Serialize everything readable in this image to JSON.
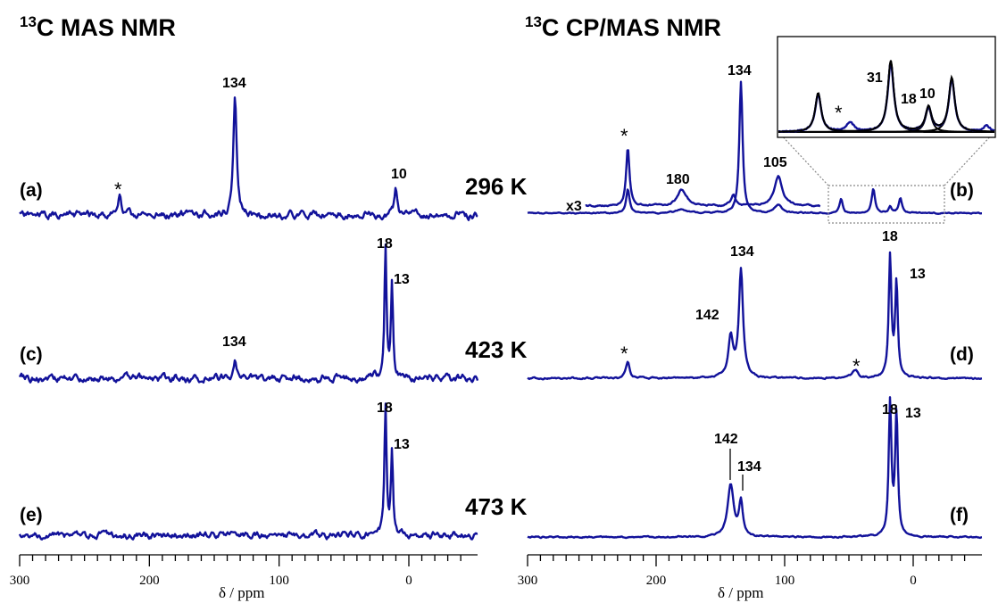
{
  "headers": {
    "left_sup": "13",
    "left_text": "C MAS NMR",
    "right_sup": "13",
    "right_text": "C CP/MAS NMR"
  },
  "temperatures": [
    "296 K",
    "423 K",
    "473 K"
  ],
  "xlabel": "δ / ppm",
  "scale_label": "x3",
  "colors": {
    "spectrum": "#12129a",
    "fit": "#000000",
    "text": "#000000"
  },
  "chart_data": [
    {
      "type": "line",
      "panel": "(a)",
      "experiment": "MAS",
      "temperature": "296 K",
      "xlim": [
        300,
        -48
      ],
      "x_reversed": true,
      "ticks": [
        300,
        200,
        100,
        0
      ],
      "xlabel": "δ / ppm",
      "peaks": [
        {
          "ppm": 134,
          "height": 0.96,
          "width": 2.2,
          "label": "134"
        },
        {
          "ppm": 223,
          "height": 0.18,
          "width": 2.0,
          "label": "*"
        },
        {
          "ppm": 10,
          "height": 0.2,
          "width": 1.8,
          "label": "10"
        }
      ]
    },
    {
      "type": "line",
      "panel": "(b)",
      "experiment": "CP/MAS",
      "temperature": "296 K",
      "xlim": [
        300,
        -48
      ],
      "x_reversed": true,
      "ticks": [
        300,
        200,
        100,
        0
      ],
      "xlabel": "δ / ppm",
      "series": [
        {
          "scale": "x1",
          "peaks": [
            {
              "ppm": 134,
              "height": 0.98,
              "width": 2.2,
              "label": "134"
            },
            {
              "ppm": 222,
              "height": 0.18,
              "width": 2.2
            },
            {
              "ppm": 105,
              "height": 0.06,
              "width": 5.0
            },
            {
              "ppm": 180,
              "height": 0.03,
              "width": 6.0
            },
            {
              "ppm": 56,
              "height": 0.1,
              "width": 2.2
            },
            {
              "ppm": 31,
              "height": 0.18,
              "width": 2.2
            },
            {
              "ppm": 18,
              "height": 0.05,
              "width": 1.8
            },
            {
              "ppm": 10,
              "height": 0.11,
              "width": 2.2
            }
          ]
        },
        {
          "scale": "x3",
          "x_range": [
            255,
            72
          ],
          "peaks": [
            {
              "ppm": 222,
              "height": 0.55,
              "width": 2.2,
              "label": "*"
            },
            {
              "ppm": 180,
              "height": 0.15,
              "width": 6.0,
              "label": "180"
            },
            {
              "ppm": 105,
              "height": 0.28,
              "width": 5.0,
              "label": "105"
            },
            {
              "ppm": 140,
              "height": 0.1,
              "width": 3.0
            }
          ]
        }
      ],
      "inset": {
        "x_range": [
          70,
          -5
        ],
        "labels": [
          "*",
          "31",
          "18",
          "10"
        ],
        "peaks": [
          {
            "ppm": 56,
            "height": 0.52,
            "label": "*"
          },
          {
            "ppm": 31,
            "height": 0.95,
            "label": "31"
          },
          {
            "ppm": 18,
            "height": 0.33,
            "label": "18"
          },
          {
            "ppm": 10,
            "height": 0.72,
            "label": "10"
          }
        ]
      }
    },
    {
      "type": "line",
      "panel": "(c)",
      "experiment": "MAS",
      "temperature": "423 K",
      "xlim": [
        300,
        -48
      ],
      "x_reversed": true,
      "ticks": [
        300,
        200,
        100,
        0
      ],
      "xlabel": "δ / ppm",
      "peaks": [
        {
          "ppm": 18,
          "height": 1.0,
          "width": 1.4,
          "label": "18"
        },
        {
          "ppm": 13,
          "height": 0.75,
          "width": 1.4,
          "label": "13"
        },
        {
          "ppm": 134,
          "height": 0.15,
          "width": 1.8,
          "label": "134"
        }
      ]
    },
    {
      "type": "line",
      "panel": "(d)",
      "experiment": "CP/MAS",
      "temperature": "423 K",
      "xlim": [
        300,
        -48
      ],
      "x_reversed": true,
      "ticks": [
        300,
        200,
        100,
        0
      ],
      "xlabel": "δ / ppm",
      "peaks": [
        {
          "ppm": 134,
          "height": 0.8,
          "width": 2.8,
          "label": "134"
        },
        {
          "ppm": 142,
          "height": 0.3,
          "width": 3.2,
          "label": "142"
        },
        {
          "ppm": 18,
          "height": 0.9,
          "width": 1.8,
          "label": "18"
        },
        {
          "ppm": 13,
          "height": 0.7,
          "width": 1.8,
          "label": "13"
        },
        {
          "ppm": 222,
          "height": 0.12,
          "width": 2.5,
          "label": "*"
        },
        {
          "ppm": 45,
          "height": 0.06,
          "width": 3.5,
          "label": "*"
        }
      ]
    },
    {
      "type": "line",
      "panel": "(e)",
      "experiment": "MAS",
      "temperature": "473 K",
      "xlim": [
        300,
        -48
      ],
      "x_reversed": true,
      "ticks": [
        300,
        200,
        100,
        0
      ],
      "xlabel": "δ / ppm",
      "peaks": [
        {
          "ppm": 18,
          "height": 1.0,
          "width": 1.4,
          "label": "18"
        },
        {
          "ppm": 13,
          "height": 0.65,
          "width": 1.4,
          "label": "13"
        }
      ]
    },
    {
      "type": "line",
      "panel": "(f)",
      "experiment": "CP/MAS",
      "temperature": "473 K",
      "xlim": [
        300,
        -48
      ],
      "x_reversed": true,
      "ticks": [
        300,
        200,
        100,
        0
      ],
      "xlabel": "δ / ppm",
      "peaks": [
        {
          "ppm": 142,
          "height": 0.4,
          "width": 4.0,
          "label": "142"
        },
        {
          "ppm": 134,
          "height": 0.25,
          "width": 2.5,
          "label": "134"
        },
        {
          "ppm": 18,
          "height": 1.0,
          "width": 1.8,
          "label": "18"
        },
        {
          "ppm": 13,
          "height": 0.93,
          "width": 1.8,
          "label": "13"
        }
      ]
    }
  ]
}
